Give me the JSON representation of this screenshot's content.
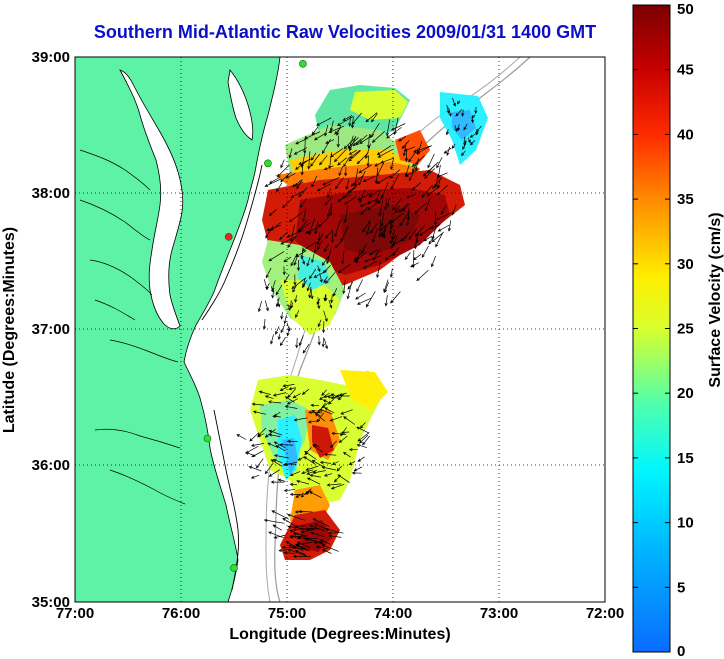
{
  "title": "Southern Mid-Atlantic Raw Velocities 2009/01/31 1400 GMT",
  "map": {
    "xlabel": "Longitude (Degrees:Minutes)",
    "ylabel": "Latitude (Degrees:Minutes)",
    "lon_range": [
      -77,
      -72
    ],
    "lat_range": [
      35,
      39
    ],
    "x_ticks": [
      "77:00",
      "76:00",
      "75:00",
      "74:00",
      "73:00",
      "72:00"
    ],
    "y_ticks": [
      "39:00",
      "38:00",
      "37:00",
      "36:00",
      "35:00"
    ],
    "grid": "dotted",
    "land_color": "#5ef2a6",
    "station_color_active": "#33dd33",
    "station_color_inactive": "#ee2222"
  },
  "colorbar": {
    "label": "Surface Velocity (cm/s)",
    "range": [
      0,
      50
    ],
    "ticks": [
      "0",
      "5",
      "10",
      "15",
      "20",
      "25",
      "30",
      "35",
      "40",
      "45",
      "50"
    ],
    "colormap": "jet"
  },
  "stations": [
    {
      "lon": -74.85,
      "lat": 38.95,
      "status": "active"
    },
    {
      "lon": -75.18,
      "lat": 38.22,
      "status": "active"
    },
    {
      "lon": -75.55,
      "lat": 37.68,
      "status": "inactive"
    },
    {
      "lon": -75.75,
      "lat": 36.2,
      "status": "active"
    },
    {
      "lon": -75.5,
      "lat": 35.25,
      "status": "active"
    }
  ]
}
